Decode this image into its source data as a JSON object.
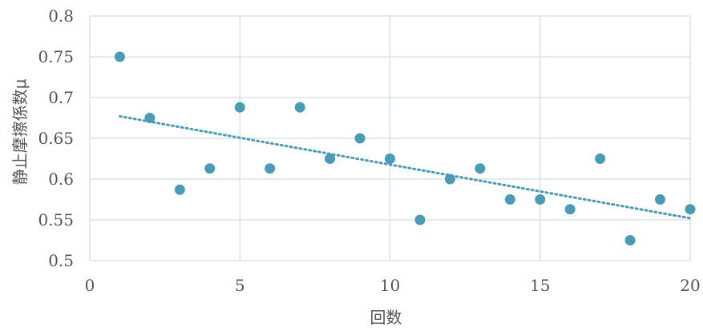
{
  "chart_data": {
    "type": "scatter",
    "title": "",
    "xlabel": "回数",
    "ylabel": "静止摩擦係数μ",
    "xlim": [
      0,
      20
    ],
    "ylim": [
      0.5,
      0.8
    ],
    "x_ticks": [
      "0",
      "5",
      "10",
      "15",
      "20"
    ],
    "y_ticks": [
      "0.5",
      "0.55",
      "0.6",
      "0.65",
      "0.7",
      "0.75",
      "0.8"
    ],
    "grid": true,
    "legend": "none",
    "colors": {
      "points": "#4a9bb5",
      "trendline": "#4a9bb5",
      "grid": "#d4dde3"
    },
    "series": [
      {
        "x": [
          1,
          2,
          3,
          4,
          5,
          6,
          7,
          8,
          9,
          10,
          11,
          12,
          13,
          14,
          15,
          16,
          17,
          18,
          19,
          20
        ],
        "y": [
          0.75,
          0.675,
          0.587,
          0.613,
          0.688,
          0.613,
          0.688,
          0.625,
          0.65,
          0.625,
          0.55,
          0.6,
          0.613,
          0.575,
          0.575,
          0.563,
          0.625,
          0.525,
          0.575,
          0.563
        ]
      }
    ],
    "trendline": {
      "type": "linear",
      "x": [
        1,
        20
      ],
      "y": [
        0.677,
        0.552
      ]
    }
  }
}
